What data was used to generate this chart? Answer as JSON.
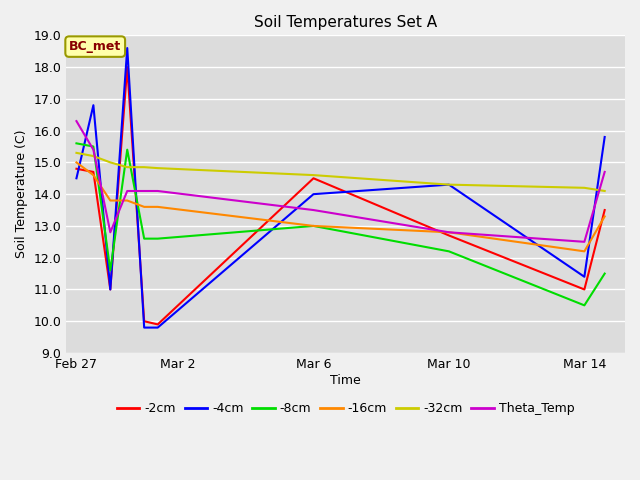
{
  "title": "Soil Temperatures Set A",
  "xlabel": "Time",
  "ylabel": "Soil Temperature (C)",
  "ylim": [
    9.0,
    19.0
  ],
  "yticks": [
    9.0,
    10.0,
    11.0,
    12.0,
    13.0,
    14.0,
    15.0,
    16.0,
    17.0,
    18.0,
    19.0
  ],
  "bg_color": "#dcdcdc",
  "fig_bg_color": "#f0f0f0",
  "annotation_text": "BC_met",
  "annotation_bg": "#ffffaa",
  "annotation_border": "#999900",
  "annotation_text_color": "#880000",
  "series": {
    "-2cm": {
      "color": "#ff0000",
      "x": [
        0,
        0.5,
        1.0,
        1.5,
        2.0,
        2.4,
        7,
        11,
        15,
        15.6
      ],
      "y": [
        14.8,
        14.7,
        11.0,
        18.0,
        10.0,
        9.9,
        14.5,
        12.7,
        11.0,
        13.5
      ]
    },
    "-4cm": {
      "color": "#0000ff",
      "x": [
        0,
        0.5,
        1.0,
        1.5,
        2.0,
        2.4,
        7,
        11,
        15,
        15.6
      ],
      "y": [
        14.5,
        16.8,
        11.0,
        18.6,
        9.8,
        9.8,
        14.0,
        14.3,
        11.4,
        15.8
      ]
    },
    "-8cm": {
      "color": "#00dd00",
      "x": [
        0,
        0.5,
        1.0,
        1.5,
        2.0,
        2.4,
        7,
        11,
        15,
        15.6
      ],
      "y": [
        15.6,
        15.5,
        11.6,
        15.4,
        12.6,
        12.6,
        13.0,
        12.2,
        10.5,
        11.5
      ]
    },
    "-16cm": {
      "color": "#ff8800",
      "x": [
        0,
        0.5,
        1.0,
        1.5,
        2.0,
        2.4,
        7,
        11,
        15,
        15.6
      ],
      "y": [
        15.0,
        14.6,
        13.8,
        13.8,
        13.6,
        13.6,
        13.0,
        12.8,
        12.2,
        13.3
      ]
    },
    "-32cm": {
      "color": "#cccc00",
      "x": [
        0,
        0.5,
        1.0,
        1.5,
        2.0,
        2.4,
        7,
        11,
        15,
        15.6
      ],
      "y": [
        15.3,
        15.2,
        15.0,
        14.85,
        14.85,
        14.82,
        14.6,
        14.3,
        14.2,
        14.1
      ]
    },
    "Theta_Temp": {
      "color": "#cc00cc",
      "x": [
        0,
        0.5,
        1.0,
        1.5,
        2.0,
        2.4,
        7,
        11,
        15,
        15.6
      ],
      "y": [
        16.3,
        15.4,
        12.8,
        14.1,
        14.1,
        14.1,
        13.5,
        12.8,
        12.5,
        14.7
      ]
    }
  },
  "xtick_positions": [
    0,
    3,
    7,
    11,
    15
  ],
  "xtick_labels": [
    "Feb 27",
    "Mar 2",
    "Mar 6",
    "Mar 10",
    "Mar 14"
  ],
  "xlim": [
    -0.3,
    16.2
  ],
  "grid_color": "#ffffff",
  "line_width": 1.5
}
